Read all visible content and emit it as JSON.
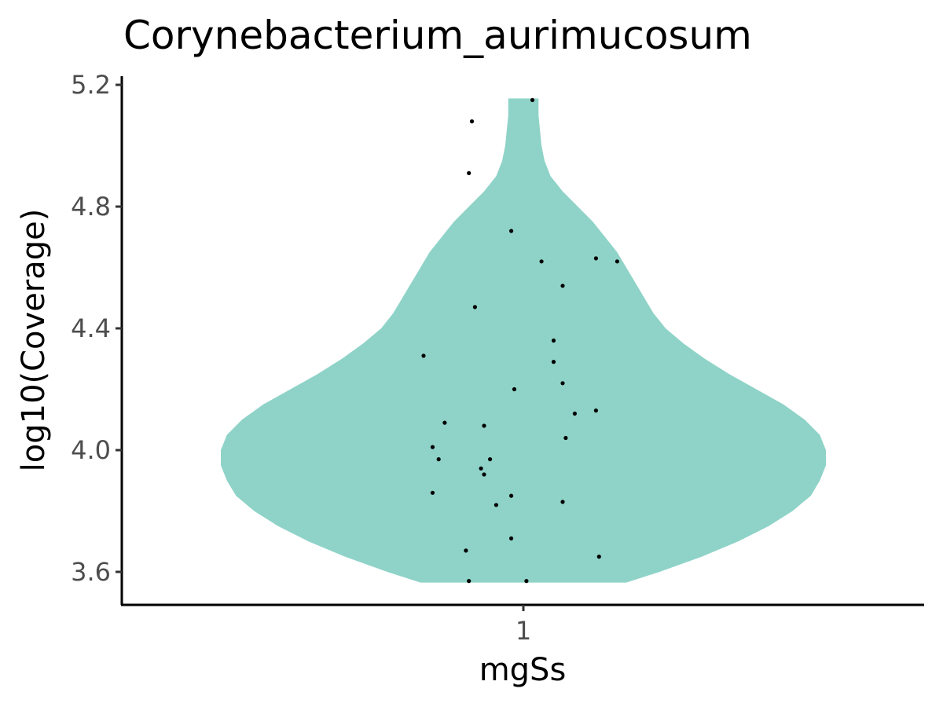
{
  "chart_data": {
    "type": "violin",
    "title": "Corynebacterium_aurimucosum",
    "xlabel": "mgSs",
    "ylabel": "log10(Coverage)",
    "categories": [
      "1"
    ],
    "ylim": [
      3.49,
      5.22
    ],
    "yticks": [
      3.6,
      4.0,
      4.4,
      4.8,
      5.2
    ],
    "ytick_labels": [
      "3.6",
      "4.0",
      "4.4",
      "4.8",
      "5.2"
    ],
    "grid": false,
    "legend": "none",
    "fill_color": "#8fd3c8",
    "point_color": "#000000",
    "violin": {
      "y_min": 3.565,
      "y_max": 5.155,
      "density": [
        [
          3.565,
          0.34
        ],
        [
          3.6,
          0.45
        ],
        [
          3.65,
          0.59
        ],
        [
          3.7,
          0.71
        ],
        [
          3.75,
          0.81
        ],
        [
          3.8,
          0.89
        ],
        [
          3.85,
          0.95
        ],
        [
          3.9,
          0.98
        ],
        [
          3.95,
          1.0
        ],
        [
          4.0,
          1.0
        ],
        [
          4.05,
          0.98
        ],
        [
          4.1,
          0.93
        ],
        [
          4.15,
          0.86
        ],
        [
          4.2,
          0.77
        ],
        [
          4.25,
          0.68
        ],
        [
          4.3,
          0.6
        ],
        [
          4.35,
          0.53
        ],
        [
          4.4,
          0.47
        ],
        [
          4.45,
          0.43
        ],
        [
          4.5,
          0.4
        ],
        [
          4.55,
          0.37
        ],
        [
          4.6,
          0.34
        ],
        [
          4.65,
          0.31
        ],
        [
          4.7,
          0.27
        ],
        [
          4.75,
          0.23
        ],
        [
          4.8,
          0.18
        ],
        [
          4.85,
          0.13
        ],
        [
          4.9,
          0.09
        ],
        [
          4.95,
          0.07
        ],
        [
          5.0,
          0.06
        ],
        [
          5.05,
          0.055
        ],
        [
          5.1,
          0.05
        ],
        [
          5.155,
          0.05
        ]
      ]
    },
    "points": [
      {
        "x": 1.03,
        "y": 5.15
      },
      {
        "x": 0.83,
        "y": 5.08
      },
      {
        "x": 0.82,
        "y": 4.91
      },
      {
        "x": 0.96,
        "y": 4.72
      },
      {
        "x": 1.06,
        "y": 4.62
      },
      {
        "x": 1.24,
        "y": 4.63
      },
      {
        "x": 1.31,
        "y": 4.62
      },
      {
        "x": 1.13,
        "y": 4.54
      },
      {
        "x": 0.84,
        "y": 4.47
      },
      {
        "x": 0.67,
        "y": 4.31
      },
      {
        "x": 1.1,
        "y": 4.36
      },
      {
        "x": 1.1,
        "y": 4.29
      },
      {
        "x": 1.13,
        "y": 4.22
      },
      {
        "x": 0.97,
        "y": 4.2
      },
      {
        "x": 1.17,
        "y": 4.12
      },
      {
        "x": 1.24,
        "y": 4.13
      },
      {
        "x": 0.74,
        "y": 4.09
      },
      {
        "x": 0.87,
        "y": 4.08
      },
      {
        "x": 1.14,
        "y": 4.04
      },
      {
        "x": 0.7,
        "y": 4.01
      },
      {
        "x": 0.72,
        "y": 3.97
      },
      {
        "x": 0.89,
        "y": 3.97
      },
      {
        "x": 0.86,
        "y": 3.94
      },
      {
        "x": 0.87,
        "y": 3.92
      },
      {
        "x": 0.7,
        "y": 3.86
      },
      {
        "x": 0.96,
        "y": 3.85
      },
      {
        "x": 1.13,
        "y": 3.83
      },
      {
        "x": 0.91,
        "y": 3.82
      },
      {
        "x": 0.96,
        "y": 3.71
      },
      {
        "x": 0.81,
        "y": 3.67
      },
      {
        "x": 1.25,
        "y": 3.65
      },
      {
        "x": 0.82,
        "y": 3.57
      },
      {
        "x": 1.01,
        "y": 3.57
      }
    ]
  }
}
